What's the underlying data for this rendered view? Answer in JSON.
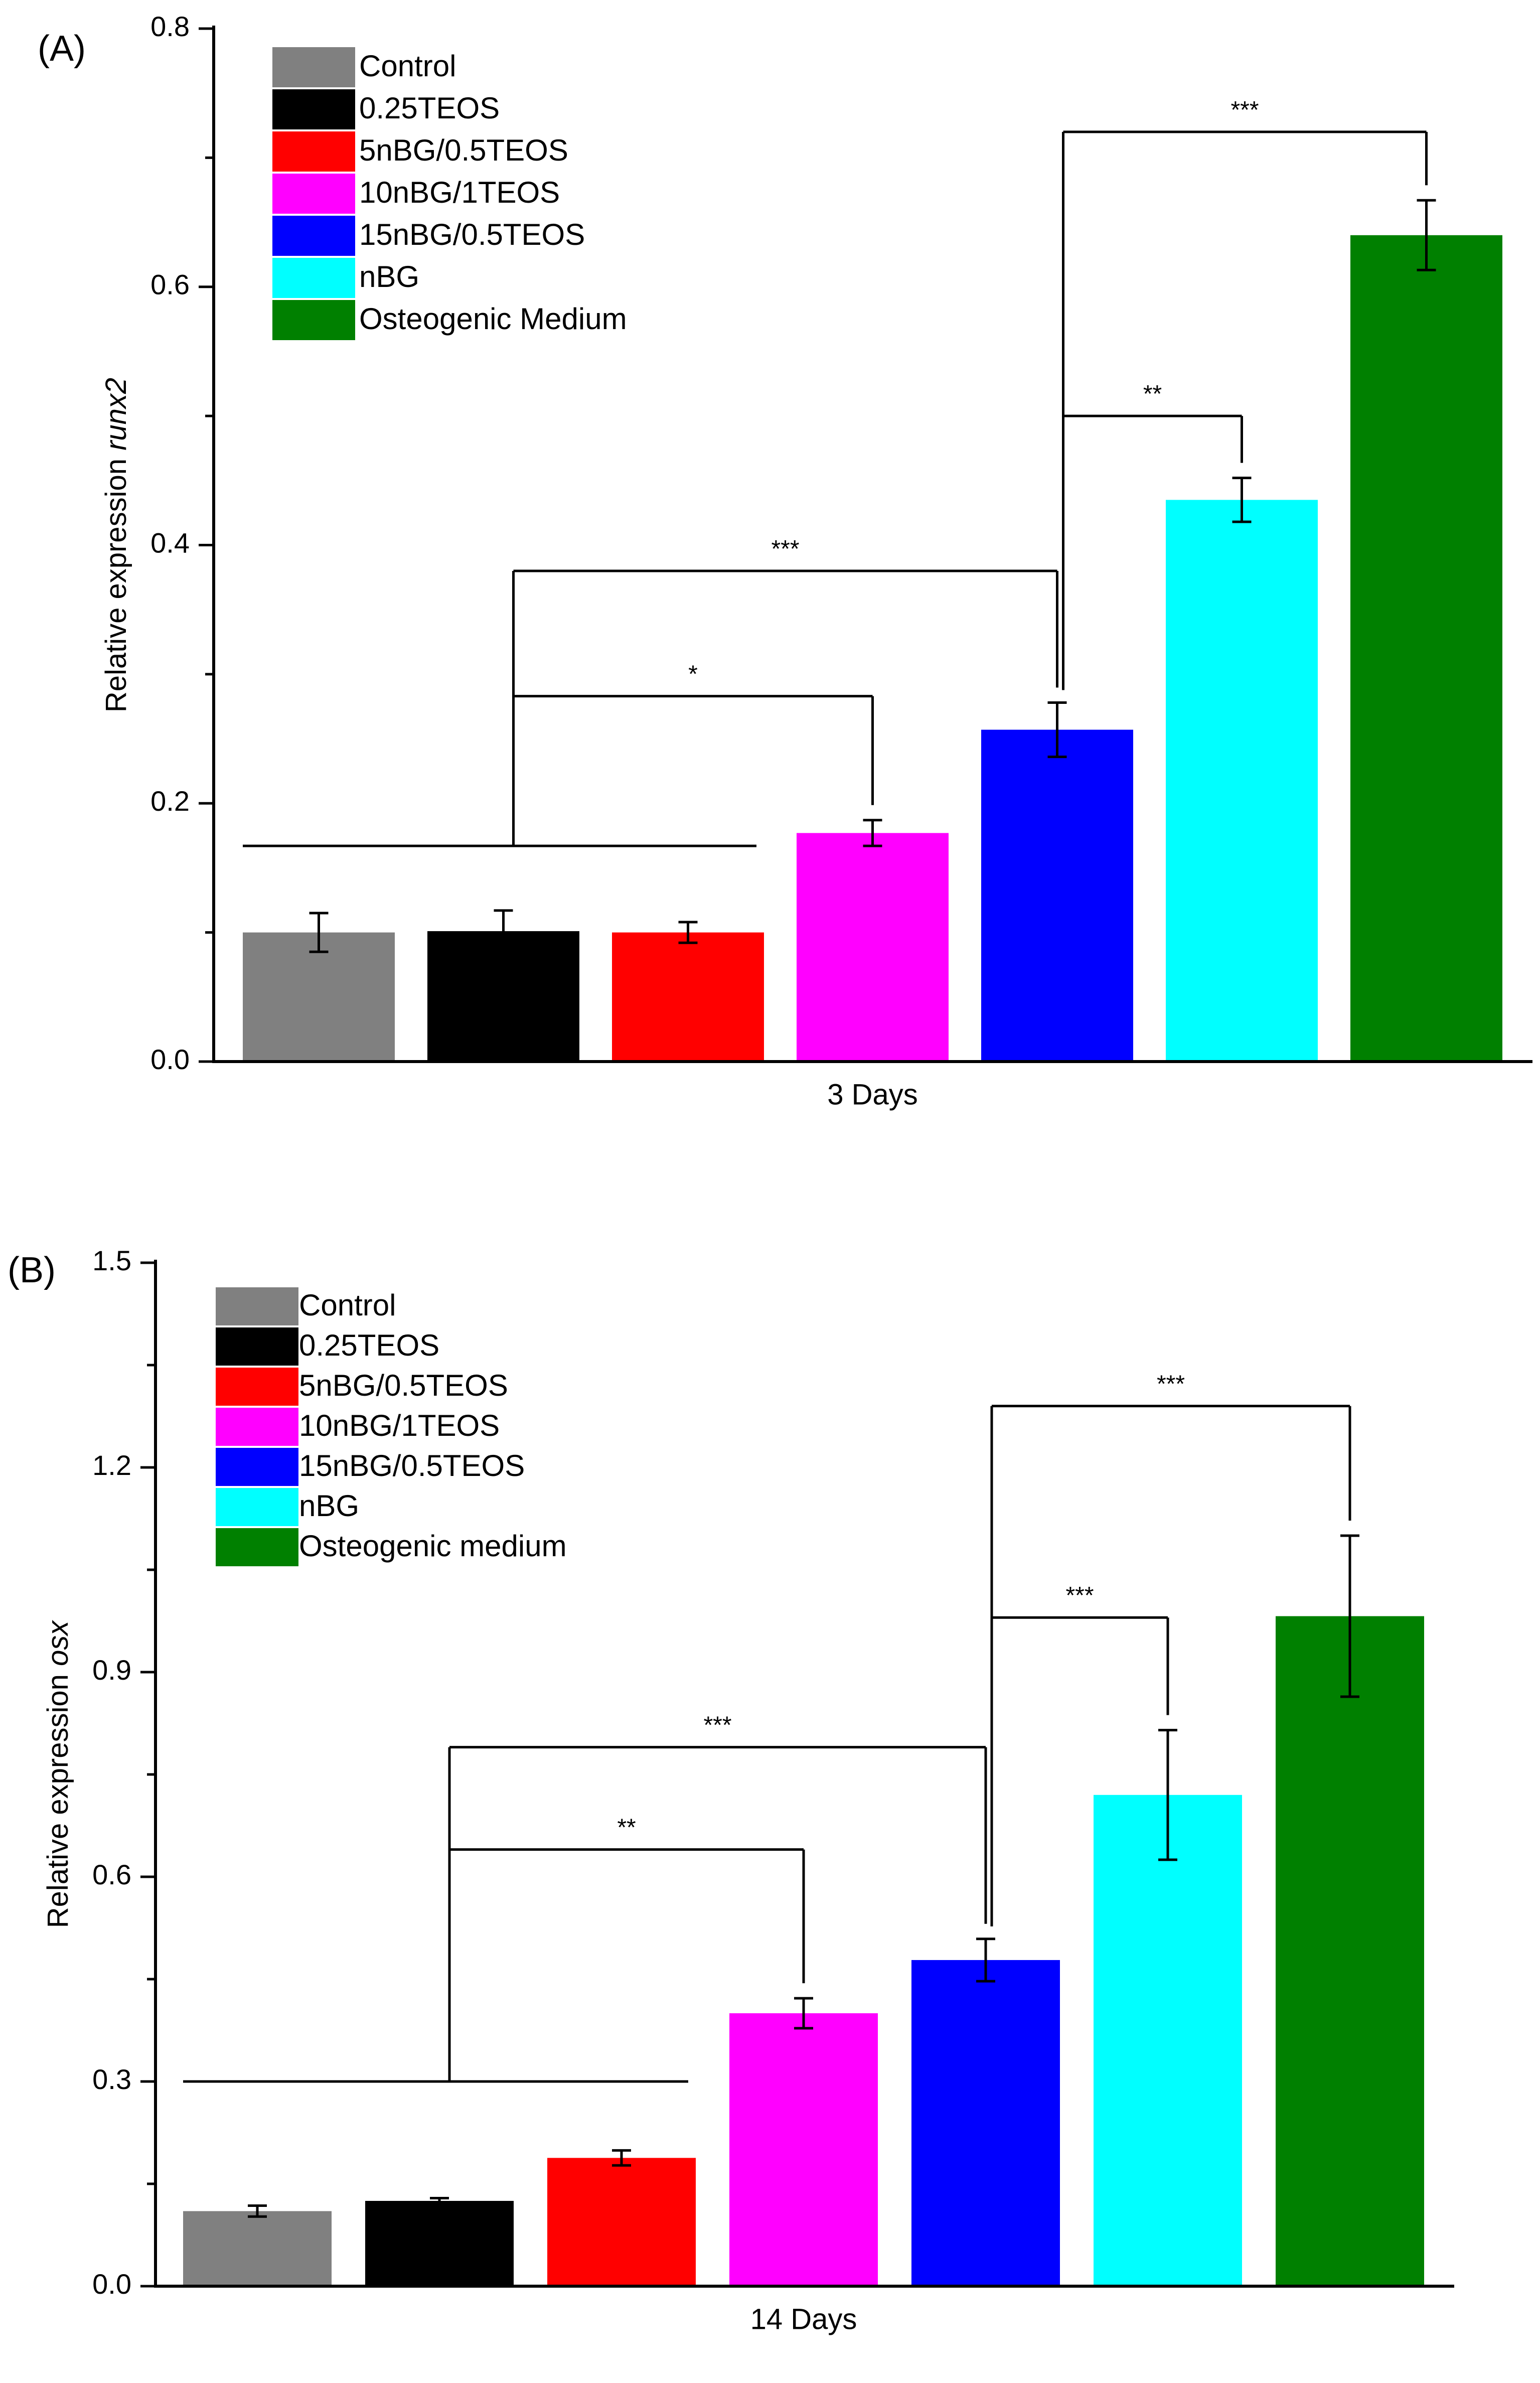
{
  "chart_data": [
    {
      "panel_label": "(A)",
      "type": "bar",
      "categories": [
        "Control",
        "0.25TEOS",
        "5nBG/0.5TEOS",
        "10nBG/1TEOS",
        "15nBG/0.5TEOS",
        "nBG",
        "Osteogenic Medium"
      ],
      "values": [
        0.1,
        0.101,
        0.1,
        0.177,
        0.257,
        0.435,
        0.64
      ],
      "errors": [
        0.015,
        0.016,
        0.008,
        0.01,
        0.021,
        0.017,
        0.027
      ],
      "colors": [
        "#808080",
        "#000000",
        "#ff0000",
        "#ff00ff",
        "#0000ff",
        "#00ffff",
        "#008000"
      ],
      "xlabel": "3 Days",
      "ylabel_prefix": "Relative expression ",
      "ylabel_italic": "runx2",
      "ylim": [
        0,
        0.8
      ],
      "yticks": [
        0.0,
        0.2,
        0.4,
        0.6,
        0.8
      ],
      "ytick_labels": [
        "0.0",
        "0.2",
        "0.4",
        "0.6",
        "0.8"
      ],
      "legend_position": "top-left",
      "baseline_bracket": {
        "from": 0,
        "to": 2,
        "y": 0.167
      },
      "significance": [
        {
          "from": "group",
          "to": 3,
          "y": 0.283,
          "label": "*"
        },
        {
          "from": "group",
          "to": 4,
          "y": 0.38,
          "label": "***"
        },
        {
          "from": 4,
          "to": 5,
          "y": 0.5,
          "label": "**"
        },
        {
          "from": 4,
          "to": 6,
          "y": 0.72,
          "label": "***"
        }
      ]
    },
    {
      "panel_label": "(B)",
      "type": "bar",
      "categories": [
        "Control",
        "0.25TEOS",
        "5nBG/0.5TEOS",
        "10nBG/1TEOS",
        "15nBG/0.5TEOS",
        "nBG",
        "Osteogenic medium"
      ],
      "values": [
        0.11,
        0.125,
        0.188,
        0.4,
        0.478,
        0.72,
        0.982
      ],
      "errors": [
        0.008,
        0.004,
        0.011,
        0.022,
        0.031,
        0.095,
        0.118
      ],
      "colors": [
        "#808080",
        "#000000",
        "#ff0000",
        "#ff00ff",
        "#0000ff",
        "#00ffff",
        "#008000"
      ],
      "xlabel": "14 Days",
      "ylabel_prefix": "Relative expression ",
      "ylabel_italic": "osx",
      "ylim": [
        0,
        1.5
      ],
      "yticks": [
        0.0,
        0.3,
        0.6,
        0.9,
        1.2,
        1.5
      ],
      "ytick_labels": [
        "0.0",
        "0.3",
        "0.6",
        "0.9",
        "1.2",
        "1.5"
      ],
      "legend_position": "top-left",
      "baseline_bracket": {
        "from": 0,
        "to": 2,
        "y": 0.3
      },
      "significance": [
        {
          "from": "group",
          "to": 3,
          "y": 0.64,
          "label": "**"
        },
        {
          "from": "group",
          "to": 4,
          "y": 0.79,
          "label": "***"
        },
        {
          "from": 4,
          "to": 5,
          "y": 0.98,
          "label": "***"
        },
        {
          "from": 4,
          "to": 6,
          "y": 1.29,
          "label": "***"
        }
      ]
    }
  ]
}
